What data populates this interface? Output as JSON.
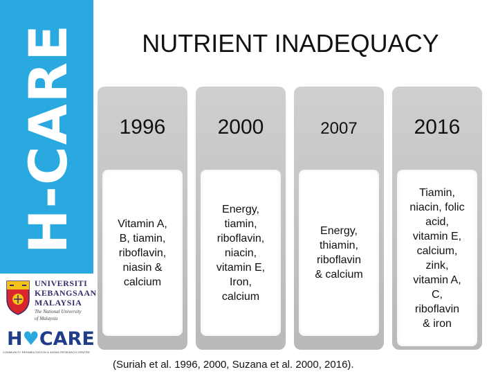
{
  "brand": {
    "vertical_text": "H-CARE",
    "band_color": "#2aa9e0"
  },
  "logos": {
    "ukm": {
      "line1": "UNIVERSITI",
      "line2": "KEBANGSAAN",
      "line3": "MALAYSIA",
      "tagline1": "The National University",
      "tagline2": "of Malaysia"
    },
    "hcare": {
      "text_pre": "H",
      "text_post": "CARE",
      "subtitle": "COMMUNITY REHABILITATION & AGING RESEARCH CENTRE"
    }
  },
  "title": "NUTRIENT INADEQUACY",
  "timeline": [
    {
      "year": "1996",
      "nutrients": "Vitamin A,\nB, tiamin,\nriboflavin,\nniasin &\ncalcium"
    },
    {
      "year": "2000",
      "nutrients": "Energy,\ntiamin,\nriboflavin,\nniacin,\nvitamin E,\nIron,\ncalcium"
    },
    {
      "year": "2007",
      "nutrients": "Energy,\nthiamin,\nriboflavin\n& calcium"
    },
    {
      "year": "2016",
      "nutrients": "Tiamin,\nniacin, folic\nacid,\nvitamin E,\ncalcium,\nzink,\nvitamin A,\nC,\nriboflavin\n& iron"
    }
  ],
  "citation": "(Suriah et al. 1996, 2000, Suzana et al. 2000, 2016)."
}
